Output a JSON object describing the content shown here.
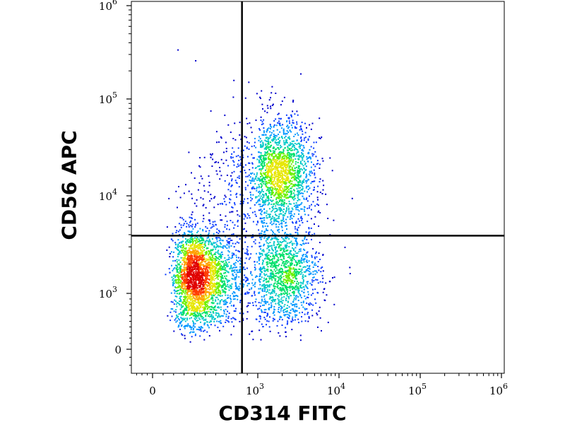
{
  "chart_data": {
    "type": "scatter",
    "style": "density-colored flow cytometry dot plot",
    "title": "",
    "xlabel": "CD314 FITC",
    "ylabel": "CD56 APC",
    "x_scale": "biexponential",
    "y_scale": "biexponential",
    "xlim": [
      -400,
      1200000
    ],
    "ylim": [
      -300,
      1200000
    ],
    "x_ticks": [
      {
        "value": 0,
        "base": "0",
        "exp": ""
      },
      {
        "value": 1000,
        "base": "10",
        "exp": "3"
      },
      {
        "value": 10000,
        "base": "10",
        "exp": "4"
      },
      {
        "value": 100000,
        "base": "10",
        "exp": "5"
      },
      {
        "value": 1000000,
        "base": "10",
        "exp": "6"
      }
    ],
    "y_ticks": [
      {
        "value": 0,
        "base": "0",
        "exp": ""
      },
      {
        "value": 1000,
        "base": "10",
        "exp": "3"
      },
      {
        "value": 10000,
        "base": "10",
        "exp": "4"
      },
      {
        "value": 100000,
        "base": "10",
        "exp": "5"
      },
      {
        "value": 1000000,
        "base": "10",
        "exp": "6"
      }
    ],
    "gates": {
      "x_threshold": 850,
      "y_threshold": 3900
    },
    "populations": [
      {
        "x_center": 430,
        "y_center": 1450,
        "x_spread": 0.3,
        "y_spread": 0.5,
        "count": 2600
      },
      {
        "x_center": 1800,
        "y_center": 17000,
        "x_spread": 0.42,
        "y_spread": 0.55,
        "count": 1700
      },
      {
        "x_center": 2100,
        "y_center": 1550,
        "x_spread": 0.45,
        "y_spread": 0.48,
        "count": 1200
      },
      {
        "x_center": 1200,
        "y_center": 6000,
        "x_spread": 0.6,
        "y_spread": 1.1,
        "count": 500
      }
    ],
    "density_colors": [
      "#0000cc",
      "#0a3cff",
      "#0096ff",
      "#00c8c8",
      "#00e06a",
      "#6cf000",
      "#e6e600",
      "#ffa000",
      "#ff3c00",
      "#e00000"
    ],
    "grid": false,
    "legend": "none"
  }
}
